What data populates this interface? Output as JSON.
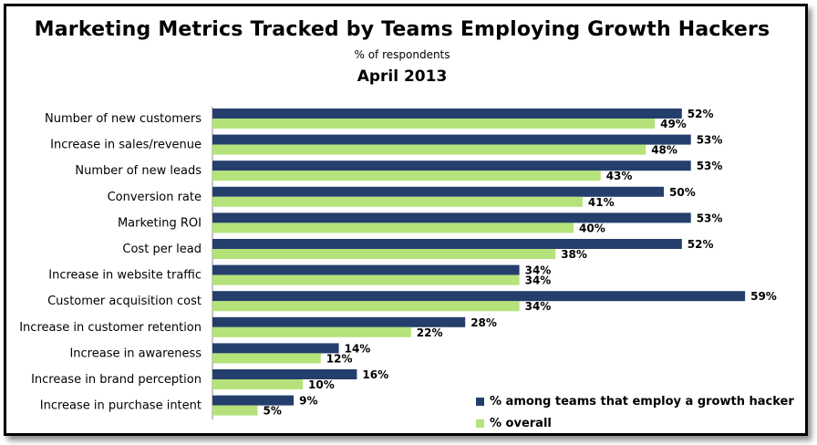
{
  "title": "Marketing Metrics Tracked by Teams Employing Growth Hackers",
  "subtitle": "% of respondents",
  "date": "April 2013",
  "colors": {
    "series1": "#243F6B",
    "series2": "#B5E27A"
  },
  "chart_data": {
    "type": "bar",
    "orientation": "horizontal",
    "title": "Marketing Metrics Tracked by Teams Employing Growth Hackers",
    "subtitle": "% of respondents",
    "categories": [
      "Number of new customers",
      "Increase in sales/revenue",
      "Number of new leads",
      "Conversion rate",
      "Marketing ROI",
      "Cost per lead",
      "Increase in website traffic",
      "Customer acquisition cost",
      "Increase in customer retention",
      "Increase in awareness",
      "Increase in brand perception",
      "Increase in purchase intent"
    ],
    "series": [
      {
        "name": "% among teams that employ a growth hacker",
        "values": [
          52,
          53,
          53,
          50,
          53,
          52,
          34,
          59,
          28,
          14,
          16,
          9
        ],
        "labels": [
          "52%",
          "53%",
          "53%",
          "50%",
          "53%",
          "52%",
          "34%",
          "59%",
          "28%",
          "14%",
          "16%",
          "9%"
        ]
      },
      {
        "name": "% overall",
        "values": [
          49,
          48,
          43,
          41,
          40,
          38,
          34,
          34,
          22,
          12,
          10,
          5
        ],
        "labels": [
          "49%",
          "48%",
          "43%",
          "41%",
          "40%",
          "38%",
          "34%",
          "34%",
          "22%",
          "12%",
          "10%",
          "5%"
        ]
      }
    ],
    "xlim": [
      0,
      60
    ],
    "grid": false,
    "legend_position": "bottom-right"
  }
}
